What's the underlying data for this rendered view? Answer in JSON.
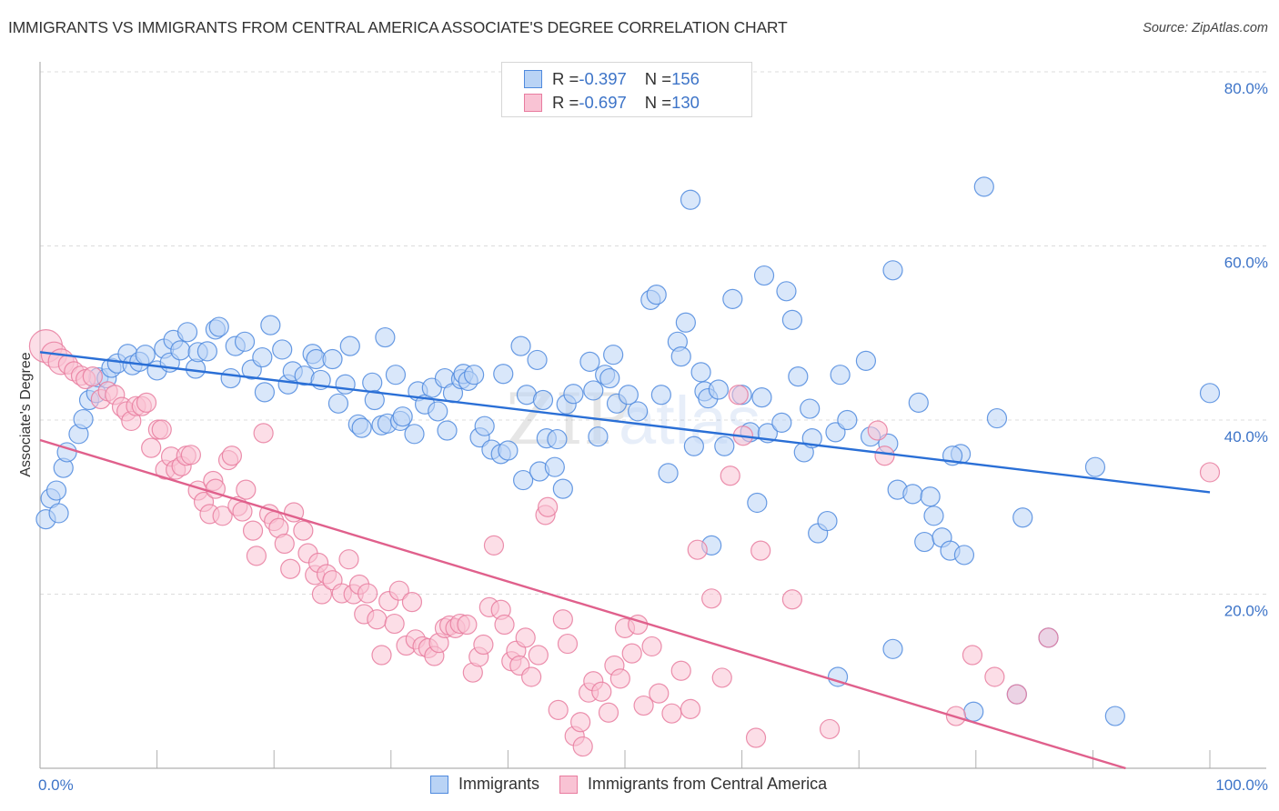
{
  "title": "IMMIGRANTS VS IMMIGRANTS FROM CENTRAL AMERICA ASSOCIATE'S DEGREE CORRELATION CHART",
  "source": "Source: ZipAtlas.com",
  "watermark": {
    "zip": "ZIP",
    "atlas": "atlas"
  },
  "colors": {
    "blue_fill": "#b9d3f5",
    "blue_stroke": "#4f8ade",
    "blue_line": "#2a6fd6",
    "pink_fill": "#f9c3d4",
    "pink_stroke": "#e87c9f",
    "pink_line": "#e0608c",
    "label": "#3d74c8"
  },
  "legend_top": [
    {
      "r_label": "R = ",
      "r_value": "-0.397",
      "n_label": "N = ",
      "n_value": "156"
    },
    {
      "r_label": "R = ",
      "r_value": "-0.697",
      "n_label": "N = ",
      "n_value": "130"
    }
  ],
  "legend_bottom": [
    "Immigrants",
    "Immigrants from Central America"
  ],
  "chart_data": {
    "type": "scatter",
    "title": "IMMIGRANTS VS IMMIGRANTS FROM CENTRAL AMERICA ASSOCIATE'S DEGREE CORRELATION CHART",
    "xlabel": "",
    "ylabel": "Associate's Degree",
    "xlim": [
      0,
      100
    ],
    "ylim": [
      0,
      80
    ],
    "x_tick_labels": [
      "0.0%",
      "100.0%"
    ],
    "y_ticks": [
      20,
      40,
      60,
      80
    ],
    "y_tick_labels": [
      "20.0%",
      "40.0%",
      "60.0%",
      "80.0%"
    ],
    "grid": true,
    "legend_position": "top-center",
    "series": [
      {
        "name": "Immigrants",
        "R": -0.397,
        "N": 156,
        "trend": {
          "x": [
            0,
            100
          ],
          "y": [
            47.8,
            31.7
          ]
        },
        "points": [
          [
            0.5,
            28.6
          ],
          [
            0.9,
            31.0
          ],
          [
            1.4,
            31.9
          ],
          [
            2.0,
            34.5
          ],
          [
            2.3,
            36.3
          ],
          [
            3.3,
            38.4
          ],
          [
            3.7,
            40.1
          ],
          [
            4.2,
            42.3
          ],
          [
            4.8,
            43.1
          ],
          [
            5.0,
            44.9
          ],
          [
            5.7,
            44.8
          ],
          [
            6.1,
            46.0
          ],
          [
            6.6,
            46.5
          ],
          [
            7.5,
            47.6
          ],
          [
            7.9,
            46.3
          ],
          [
            8.5,
            46.7
          ],
          [
            9.0,
            47.5
          ],
          [
            10.0,
            45.7
          ],
          [
            10.6,
            48.2
          ],
          [
            11.1,
            46.6
          ],
          [
            11.4,
            49.2
          ],
          [
            12.0,
            48.0
          ],
          [
            12.6,
            50.1
          ],
          [
            13.3,
            45.9
          ],
          [
            13.5,
            47.8
          ],
          [
            14.3,
            47.9
          ],
          [
            15.0,
            50.4
          ],
          [
            15.3,
            50.7
          ],
          [
            16.3,
            44.8
          ],
          [
            16.7,
            48.5
          ],
          [
            17.5,
            49.0
          ],
          [
            18.1,
            45.8
          ],
          [
            19.0,
            47.2
          ],
          [
            19.2,
            43.2
          ],
          [
            19.7,
            50.9
          ],
          [
            20.7,
            48.1
          ],
          [
            21.2,
            44.1
          ],
          [
            21.6,
            45.6
          ],
          [
            22.6,
            45.1
          ],
          [
            23.3,
            47.6
          ],
          [
            23.6,
            47.0
          ],
          [
            24.0,
            44.6
          ],
          [
            25.0,
            47.0
          ],
          [
            25.5,
            41.9
          ],
          [
            26.1,
            44.1
          ],
          [
            26.5,
            48.5
          ],
          [
            27.2,
            39.5
          ],
          [
            27.5,
            39.1
          ],
          [
            28.4,
            44.3
          ],
          [
            28.6,
            42.3
          ],
          [
            29.2,
            39.4
          ],
          [
            29.5,
            49.5
          ],
          [
            29.7,
            39.6
          ],
          [
            30.4,
            45.2
          ],
          [
            30.8,
            39.9
          ],
          [
            31.0,
            40.4
          ],
          [
            32.0,
            38.4
          ],
          [
            32.3,
            43.3
          ],
          [
            32.9,
            41.8
          ],
          [
            33.5,
            43.7
          ],
          [
            34.0,
            41.0
          ],
          [
            34.6,
            44.8
          ],
          [
            34.8,
            38.8
          ],
          [
            35.3,
            43.1
          ],
          [
            36.0,
            44.7
          ],
          [
            36.2,
            45.3
          ],
          [
            36.6,
            44.5
          ],
          [
            37.1,
            45.2
          ],
          [
            37.6,
            38.0
          ],
          [
            38.0,
            39.3
          ],
          [
            38.6,
            36.6
          ],
          [
            39.4,
            36.1
          ],
          [
            39.6,
            45.3
          ],
          [
            40.0,
            36.5
          ],
          [
            41.1,
            48.5
          ],
          [
            41.3,
            33.1
          ],
          [
            41.6,
            42.9
          ],
          [
            42.5,
            46.9
          ],
          [
            42.7,
            34.1
          ],
          [
            43.0,
            42.3
          ],
          [
            43.3,
            37.9
          ],
          [
            44.0,
            34.6
          ],
          [
            44.2,
            37.8
          ],
          [
            44.7,
            32.1
          ],
          [
            45.0,
            41.8
          ],
          [
            45.6,
            43.0
          ],
          [
            47.0,
            46.7
          ],
          [
            47.3,
            43.4
          ],
          [
            47.7,
            38.1
          ],
          [
            48.3,
            45.2
          ],
          [
            48.7,
            44.8
          ],
          [
            49.0,
            47.5
          ],
          [
            49.3,
            41.9
          ],
          [
            50.3,
            42.9
          ],
          [
            51.1,
            41.0
          ],
          [
            52.2,
            53.8
          ],
          [
            52.7,
            54.4
          ],
          [
            53.1,
            42.9
          ],
          [
            53.7,
            33.9
          ],
          [
            54.5,
            49.0
          ],
          [
            54.8,
            47.3
          ],
          [
            55.2,
            51.2
          ],
          [
            55.6,
            65.3
          ],
          [
            55.9,
            37.0
          ],
          [
            56.5,
            45.5
          ],
          [
            56.8,
            43.3
          ],
          [
            57.1,
            42.5
          ],
          [
            57.4,
            25.6
          ],
          [
            58.0,
            43.5
          ],
          [
            58.5,
            37.0
          ],
          [
            59.2,
            53.9
          ],
          [
            60.0,
            42.9
          ],
          [
            60.7,
            38.6
          ],
          [
            61.3,
            30.5
          ],
          [
            61.7,
            42.6
          ],
          [
            61.9,
            56.6
          ],
          [
            62.2,
            38.5
          ],
          [
            63.4,
            39.7
          ],
          [
            63.8,
            54.8
          ],
          [
            64.3,
            51.5
          ],
          [
            64.8,
            45.0
          ],
          [
            65.3,
            36.3
          ],
          [
            65.8,
            41.3
          ],
          [
            66.0,
            37.9
          ],
          [
            66.5,
            27.0
          ],
          [
            67.3,
            28.4
          ],
          [
            68.0,
            38.6
          ],
          [
            68.4,
            45.2
          ],
          [
            69.0,
            40.0
          ],
          [
            70.6,
            46.8
          ],
          [
            71.0,
            38.1
          ],
          [
            72.5,
            37.3
          ],
          [
            72.9,
            57.2
          ],
          [
            73.3,
            32.0
          ],
          [
            74.6,
            31.5
          ],
          [
            75.1,
            42.0
          ],
          [
            75.6,
            26.0
          ],
          [
            76.1,
            31.2
          ],
          [
            76.4,
            29.0
          ],
          [
            77.1,
            26.5
          ],
          [
            77.8,
            25.0
          ],
          [
            78.7,
            36.1
          ],
          [
            78.0,
            35.9
          ],
          [
            79.0,
            24.5
          ],
          [
            80.7,
            66.8
          ],
          [
            81.8,
            40.2
          ],
          [
            84.0,
            28.8
          ],
          [
            90.2,
            34.6
          ],
          [
            68.2,
            10.5
          ],
          [
            72.9,
            13.7
          ],
          [
            79.8,
            6.5
          ],
          [
            83.5,
            8.5
          ],
          [
            86.2,
            15.0
          ],
          [
            91.9,
            6.0
          ],
          [
            100.0,
            43.1
          ],
          [
            1.6,
            29.3
          ]
        ]
      },
      {
        "name": "Immigrants from Central America",
        "R": -0.697,
        "N": 130,
        "trend": {
          "x": [
            0,
            92.8
          ],
          "y": [
            37.7,
            0
          ]
        },
        "points": [
          [
            0.5,
            48.5
          ],
          [
            1.2,
            47.5
          ],
          [
            1.8,
            46.7
          ],
          [
            2.4,
            46.4
          ],
          [
            2.9,
            45.6
          ],
          [
            3.5,
            45.1
          ],
          [
            3.9,
            44.7
          ],
          [
            4.5,
            45.0
          ],
          [
            5.2,
            42.4
          ],
          [
            5.8,
            43.3
          ],
          [
            6.4,
            42.9
          ],
          [
            7.0,
            41.5
          ],
          [
            7.4,
            41.0
          ],
          [
            7.8,
            39.9
          ],
          [
            8.2,
            41.6
          ],
          [
            8.7,
            41.6
          ],
          [
            9.1,
            42.0
          ],
          [
            9.5,
            36.8
          ],
          [
            10.1,
            38.9
          ],
          [
            10.4,
            38.9
          ],
          [
            10.7,
            34.3
          ],
          [
            11.2,
            35.8
          ],
          [
            11.6,
            34.3
          ],
          [
            12.1,
            34.7
          ],
          [
            12.5,
            35.9
          ],
          [
            12.9,
            36.0
          ],
          [
            13.5,
            31.9
          ],
          [
            14.0,
            30.6
          ],
          [
            14.5,
            29.2
          ],
          [
            14.8,
            33.0
          ],
          [
            15.0,
            32.1
          ],
          [
            15.6,
            29.0
          ],
          [
            16.1,
            35.4
          ],
          [
            16.4,
            35.9
          ],
          [
            16.9,
            30.1
          ],
          [
            17.3,
            29.5
          ],
          [
            17.6,
            32.0
          ],
          [
            18.2,
            27.3
          ],
          [
            18.5,
            24.4
          ],
          [
            19.1,
            38.5
          ],
          [
            19.6,
            29.2
          ],
          [
            20.0,
            28.4
          ],
          [
            20.4,
            27.6
          ],
          [
            20.9,
            25.8
          ],
          [
            21.4,
            22.9
          ],
          [
            21.7,
            29.4
          ],
          [
            22.5,
            27.3
          ],
          [
            22.9,
            24.7
          ],
          [
            23.5,
            22.2
          ],
          [
            23.8,
            23.6
          ],
          [
            24.1,
            20.0
          ],
          [
            24.5,
            22.3
          ],
          [
            25.0,
            21.6
          ],
          [
            25.8,
            20.1
          ],
          [
            26.4,
            24.0
          ],
          [
            26.8,
            20.0
          ],
          [
            27.3,
            21.1
          ],
          [
            27.7,
            17.7
          ],
          [
            28.0,
            20.1
          ],
          [
            28.8,
            17.1
          ],
          [
            29.2,
            13.0
          ],
          [
            29.8,
            19.2
          ],
          [
            30.3,
            16.6
          ],
          [
            30.7,
            20.4
          ],
          [
            31.3,
            14.1
          ],
          [
            31.8,
            19.1
          ],
          [
            32.1,
            14.8
          ],
          [
            32.7,
            14.0
          ],
          [
            33.2,
            13.8
          ],
          [
            33.7,
            12.9
          ],
          [
            34.1,
            14.4
          ],
          [
            34.6,
            16.1
          ],
          [
            35.0,
            16.4
          ],
          [
            35.5,
            16.1
          ],
          [
            35.9,
            16.6
          ],
          [
            36.5,
            16.5
          ],
          [
            37.0,
            11.0
          ],
          [
            37.5,
            12.8
          ],
          [
            37.9,
            14.2
          ],
          [
            38.4,
            18.5
          ],
          [
            38.8,
            25.6
          ],
          [
            39.4,
            18.2
          ],
          [
            39.7,
            16.5
          ],
          [
            40.3,
            12.3
          ],
          [
            40.7,
            13.5
          ],
          [
            41.0,
            11.8
          ],
          [
            41.5,
            15.0
          ],
          [
            42.0,
            10.5
          ],
          [
            42.6,
            13.0
          ],
          [
            43.2,
            29.1
          ],
          [
            43.4,
            30.0
          ],
          [
            44.3,
            6.7
          ],
          [
            44.7,
            17.1
          ],
          [
            45.1,
            14.3
          ],
          [
            45.7,
            3.7
          ],
          [
            46.2,
            5.3
          ],
          [
            46.4,
            2.5
          ],
          [
            46.9,
            8.7
          ],
          [
            47.3,
            10.0
          ],
          [
            48.0,
            8.8
          ],
          [
            48.6,
            6.4
          ],
          [
            49.1,
            11.8
          ],
          [
            49.6,
            10.3
          ],
          [
            50.0,
            16.1
          ],
          [
            50.6,
            13.2
          ],
          [
            51.1,
            16.5
          ],
          [
            51.6,
            7.2
          ],
          [
            52.3,
            14.0
          ],
          [
            52.9,
            8.6
          ],
          [
            54.0,
            6.3
          ],
          [
            54.8,
            11.2
          ],
          [
            55.6,
            6.8
          ],
          [
            56.2,
            25.1
          ],
          [
            57.4,
            19.5
          ],
          [
            58.3,
            10.4
          ],
          [
            59.0,
            33.6
          ],
          [
            59.7,
            42.9
          ],
          [
            60.1,
            38.2
          ],
          [
            61.2,
            3.5
          ],
          [
            61.6,
            25.0
          ],
          [
            71.6,
            38.8
          ],
          [
            72.2,
            35.9
          ],
          [
            79.7,
            13.0
          ],
          [
            86.2,
            15.0
          ],
          [
            83.5,
            8.5
          ],
          [
            78.3,
            6.0
          ],
          [
            81.6,
            10.5
          ],
          [
            100.0,
            34.0
          ],
          [
            64.3,
            19.4
          ],
          [
            67.5,
            4.5
          ]
        ]
      }
    ]
  }
}
